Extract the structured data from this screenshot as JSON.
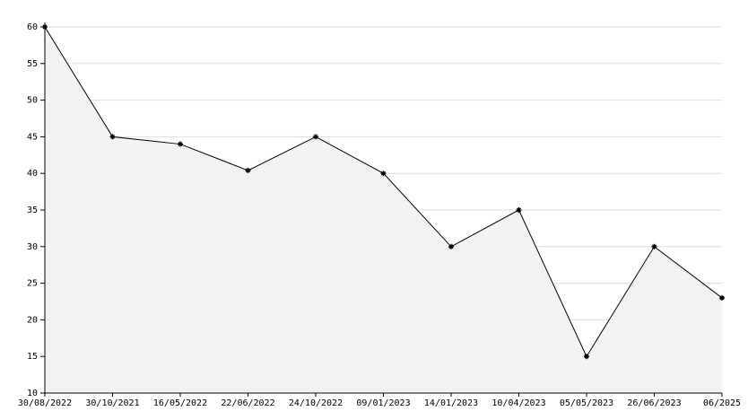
{
  "chart_data": {
    "type": "area",
    "categories": [
      "30/08/2022",
      "30/10/2021",
      "16/05/2022",
      "22/06/2022",
      "24/10/2022",
      "09/01/2023",
      "14/01/2023",
      "10/04/2023",
      "05/05/2023",
      "26/06/2023",
      "06/2025"
    ],
    "values": [
      60,
      45,
      44,
      40.4,
      45,
      40,
      30,
      35,
      15,
      30,
      23
    ],
    "color": "#000000",
    "fill": "#f2f2f2",
    "ylim": [
      10,
      60
    ],
    "yticks": [
      10,
      15,
      20,
      25,
      30,
      35,
      40,
      45,
      50,
      55,
      60
    ],
    "grid": true
  }
}
